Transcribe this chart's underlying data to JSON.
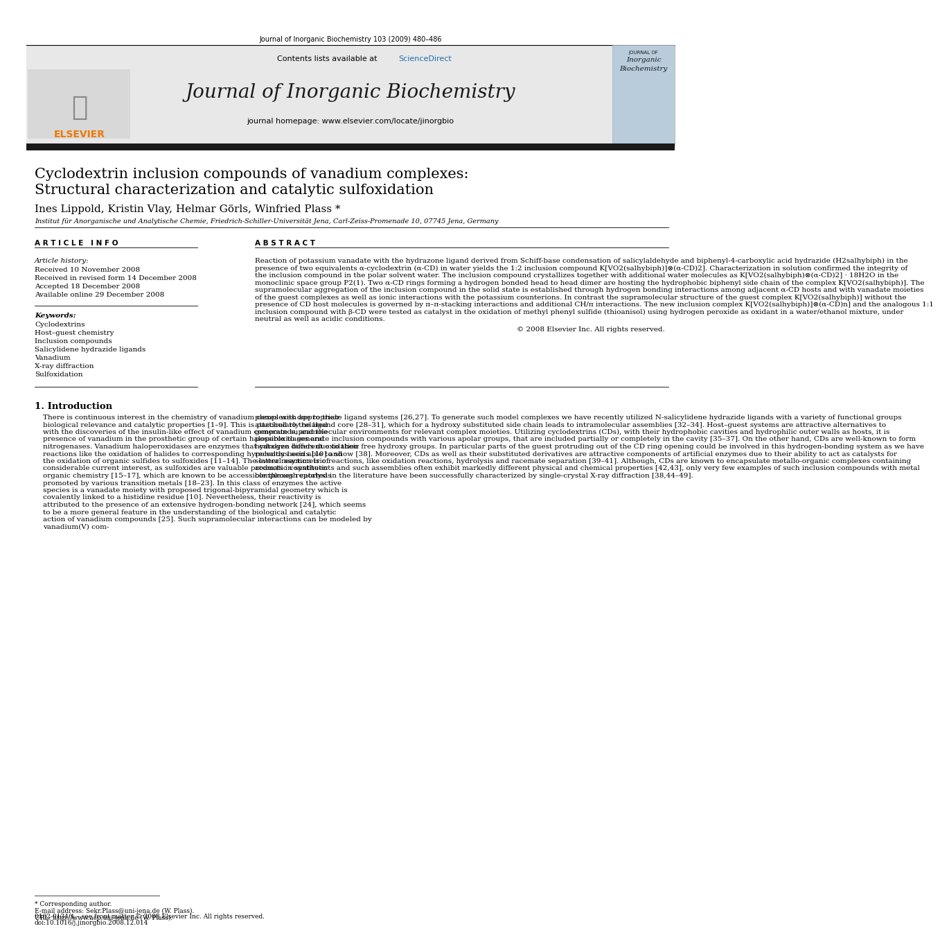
{
  "page_header": "Journal of Inorganic Biochemistry 103 (2009) 480–486",
  "journal_name": "Journal of Inorganic Biochemistry",
  "contents_line": "Contents lists available at ScienceDirect",
  "sciencedirect_color": "#1a6faf",
  "homepage_line": "journal homepage: www.elsevier.com/locate/jinorgbio",
  "title_line1": "Cyclodextrin inclusion compounds of vanadium complexes:",
  "title_line2": "Structural characterization and catalytic sulfoxidation",
  "authors": "Ines Lippold, Kristin Vlay, Helmar Görls, Winfried Plass *",
  "affiliation": "Institut für Anorganische und Analytische Chemie, Friedrich-Schiller-Universität Jena, Carl-Zeiss-Promenade 10, 07745 Jena, Germany",
  "article_info_header": "A R T I C L E   I N F O",
  "abstract_header": "A B S T R A C T",
  "article_history_label": "Article history:",
  "article_history": [
    "Received 10 November 2008",
    "Received in revised form 14 December 2008",
    "Accepted 18 December 2008",
    "Available online 29 December 2008"
  ],
  "keywords_label": "Keywords:",
  "keywords": [
    "Cyclodextrins",
    "Host–guest chemistry",
    "Inclusion compounds",
    "Salicylidene hydrazide ligands",
    "Vanadium",
    "X-ray diffraction",
    "Sulfoxidation"
  ],
  "abstract_text": "Reaction of potassium vanadate with the hydrazone ligand derived from Schiff-base condensation of salicylaldehyde and biphenyl-4-carboxylic acid hydrazide (H2salhybiph) in the presence of two equivalents α-cyclodextrin (α-CD) in water yields the 1:2 inclusion compound K[VO2(salhybiph)]⊗(α-CD)2]. Characterization in solution confirmed the integrity of the inclusion compound in the polar solvent water. The inclusion compound crystallizes together with additional water molecules as K[VO2(salhybiph)⊗(α-CD)2] · 18H2O in the monoclinic space group P2(1). Two α-CD rings forming a hydrogen bonded head to head dimer are hosting the hydrophobic biphenyl side chain of the complex K[VO2(salhybiph)]. The supramolecular aggregation of the inclusion compound in the solid state is established through hydrogen bonding interactions among adjacent α-CD hosts and with vanadate moieties of the guest complexes as well as ionic interactions with the potassium counterions. In contrast the supramolecular structure of the guest complex K[VO2(salhybiph)] without the presence of CD host molecules is governed by π–π-stacking interactions and additional CH/π interactions. The new inclusion complex K[VO2(salhybiph)]⊗(α-CD)n] and the analogous 1:1 inclusion compound with β-CD were tested as catalyst in the oxidation of methyl phenyl sulfide (thioanisol) using hydrogen peroxide as oxidant in a water/ethanol mixture, under neutral as well as acidic conditions.",
  "copyright_line": "© 2008 Elsevier Inc. All rights reserved.",
  "section1_header": "1. Introduction",
  "intro_col1": "There is continuous interest in the chemistry of vanadium complexes due to their biological relevance and catalytic properties [1–9]. This is particularly related with the discoveries of the insulin-like effect of vanadium compounds, and the presence of vanadium in the prosthetic group of certain haloperoxidases and nitrogenases. Vanadium haloperoxidases are enzymes that catalyze different oxidation reactions like the oxidation of halides to corresponding hypohalous acids [10] and the oxidation of organic sulfides to sulfoxides [11–14]. The latter reaction is of considerable current interest, as sulfoxides are valuable products in synthetic organic chemistry [15–17], which are known to be accessible through catalysis promoted by various transition metals [18–23]. In this class of enzymes the active species is a vanadate moiety with proposed trigonal-bipyramidal geometry which is covalently linked to a histidine residue [10]. Nevertheless, their reactivity is attributed to the presence of an extensive hydrogen-bonding network [24], which seems to be a more general feature in the understanding of the biological and catalytic action of vanadium compounds [25]. Such supramolecular interactions can be modeled by vanadium(V) com-",
  "intro_col2": "plexes with appropriate ligand systems [26,27]. To generate such model complexes we have recently utilized N-salicylidene hydrazide ligands with a variety of functional groups attached to the ligand core [28–31], which for a hydroxy substituted side chain leads to intramolecular assemblies [32–34]. Host–guest systems are attractive alternatives to generate supramolecular environments for relevant complex moieties. Utilizing cyclodextrins (CDs), with their hydrophobic cavities and hydrophilic outer walls as hosts, it is possible to generate inclusion compounds with various apolar groups, that are included partially or completely in the cavity [35–37]. On the other hand, CDs are well-known to form hydrogen bonds due to their free hydroxy groups. In particular parts of the guest protruding out of the CD ring opening could be involved in this hydrogen-bonding system as we have recently been able to show [38]. Moreover, CDs as well as their substituted derivatives are attractive components of artificial enzymes due to their ability to act as catalysts for several asymmetric reactions, like oxidation reactions, hydrolysis and racemate separation [39–41]. Although, CDs are known to encapsulate metallo-organic complexes containing aromatic constituents and such assemblies often exhibit markedly different physical and chemical properties [42,43], only very few examples of such inclusion compounds with metal complexes reported in the literature have been successfully characterized by single-crystal X-ray diffraction [38,44–49].",
  "footer_line1": "* Corresponding author.",
  "footer_line2": "E-mail address: Sekr.Plass@uni-jena.de (W. Plass).",
  "footer_line3": "URL: http://www.acp.uni-jena.de (W. Plass).",
  "footer_issn": "0162-0134/$ – see front matter © 2008 Elsevier Inc. All rights reserved.",
  "footer_doi": "doi:10.1016/j.jinorgbio.2008.12.014",
  "bg_color": "#ffffff",
  "header_bg": "#e8e8e8",
  "dark_bar_color": "#1a1a1a",
  "elsevier_orange": "#f07800",
  "title_fontsize": 15,
  "author_fontsize": 11,
  "body_fontsize": 7.5,
  "small_fontsize": 6.5
}
